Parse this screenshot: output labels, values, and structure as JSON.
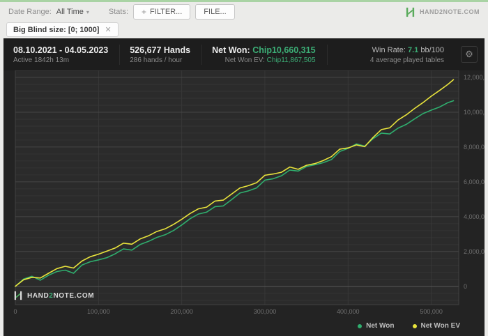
{
  "colors": {
    "top_strip": "#a9d3a4",
    "accent_green": "#3cae76",
    "panel_bg": "#232323",
    "header_bg": "#1d1d1d",
    "plot_bg": "#2b2b2b"
  },
  "toolbar": {
    "date_range_label": "Date Range:",
    "date_range_value": "All Time",
    "stats_label": "Stats:",
    "filter_button": "FILTER...",
    "file_button": "FILE...",
    "brand": "HAND2NOTE.COM"
  },
  "filter_tag": {
    "text": "Big Blind size: [0; 1000]"
  },
  "stats_header": {
    "date_range": "08.10.2021 - 04.05.2023",
    "active_time": "Active 1842h 13m",
    "hands": "526,677 Hands",
    "hands_per_hour": "286 hands / hour",
    "net_won_label": "Net Won:",
    "net_won_value": "Chip10,660,315",
    "net_won_ev_label": "Net Won  EV:",
    "net_won_ev_value": "Chip11,867,505",
    "win_rate_label": "Win Rate:",
    "win_rate_value": "7.1",
    "win_rate_unit": "bb/100",
    "avg_tables": "4 average played tables"
  },
  "watermark": {
    "prefix": "HAND",
    "two": "2",
    "suffix": "NOTE.COM"
  },
  "chart_data": {
    "type": "line",
    "xlabel": "",
    "ylabel": "",
    "xlim": [
      0,
      533000
    ],
    "ylim": [
      -1050000,
      12400000
    ],
    "grid": true,
    "legend_position": "bottom-right",
    "x_ticks": [
      {
        "value": 0,
        "label": "0"
      },
      {
        "value": 100000,
        "label": "100,000"
      },
      {
        "value": 200000,
        "label": "200,000"
      },
      {
        "value": 300000,
        "label": "300,000"
      },
      {
        "value": 400000,
        "label": "400,000"
      },
      {
        "value": 500000,
        "label": "500,000"
      }
    ],
    "y_ticks": [
      {
        "value": 0,
        "label": "0"
      },
      {
        "value": 2000000,
        "label": "2,000,000"
      },
      {
        "value": 4000000,
        "label": "4,000,000"
      },
      {
        "value": 6000000,
        "label": "6,000,000"
      },
      {
        "value": 8000000,
        "label": "8,000,000"
      },
      {
        "value": 10000000,
        "label": "10,000,000"
      },
      {
        "value": 12000000,
        "label": "12,000,000"
      }
    ],
    "y_minor_step": 400000,
    "x": [
      0,
      10000,
      20000,
      30000,
      40000,
      50000,
      60000,
      70000,
      80000,
      90000,
      100000,
      110000,
      120000,
      130000,
      140000,
      150000,
      160000,
      170000,
      180000,
      190000,
      200000,
      210000,
      220000,
      230000,
      240000,
      250000,
      260000,
      270000,
      280000,
      290000,
      300000,
      310000,
      320000,
      330000,
      340000,
      350000,
      360000,
      370000,
      380000,
      390000,
      400000,
      410000,
      420000,
      430000,
      440000,
      450000,
      460000,
      470000,
      480000,
      490000,
      500000,
      510000,
      520000,
      526677
    ],
    "series": [
      {
        "name": "Net Won",
        "color": "#2fae6e",
        "final_value": 10660315,
        "values": [
          0,
          420000,
          580000,
          350000,
          640000,
          850000,
          930000,
          750000,
          1220000,
          1410000,
          1520000,
          1650000,
          1870000,
          2150000,
          2080000,
          2400000,
          2580000,
          2810000,
          2960000,
          3200000,
          3520000,
          3880000,
          4150000,
          4260000,
          4580000,
          4620000,
          4980000,
          5360000,
          5480000,
          5650000,
          6100000,
          6180000,
          6350000,
          6680000,
          6620000,
          6880000,
          6980000,
          7100000,
          7280000,
          7750000,
          7920000,
          8180000,
          8050000,
          8480000,
          8800000,
          8750000,
          9080000,
          9300000,
          9620000,
          9920000,
          10120000,
          10300000,
          10550000,
          10660315
        ]
      },
      {
        "name": "Net Won  EV",
        "color": "#e9e43c",
        "final_value": 11867505,
        "values": [
          0,
          380000,
          520000,
          480000,
          750000,
          1020000,
          1150000,
          1050000,
          1450000,
          1700000,
          1850000,
          2020000,
          2200000,
          2480000,
          2420000,
          2720000,
          2900000,
          3150000,
          3300000,
          3550000,
          3850000,
          4180000,
          4450000,
          4550000,
          4900000,
          4950000,
          5300000,
          5650000,
          5780000,
          5950000,
          6380000,
          6450000,
          6550000,
          6850000,
          6720000,
          6950000,
          7050000,
          7220000,
          7450000,
          7880000,
          7950000,
          8120000,
          8020000,
          8550000,
          9000000,
          9100000,
          9550000,
          9850000,
          10220000,
          10550000,
          10920000,
          11250000,
          11600000,
          11867505
        ]
      }
    ]
  }
}
